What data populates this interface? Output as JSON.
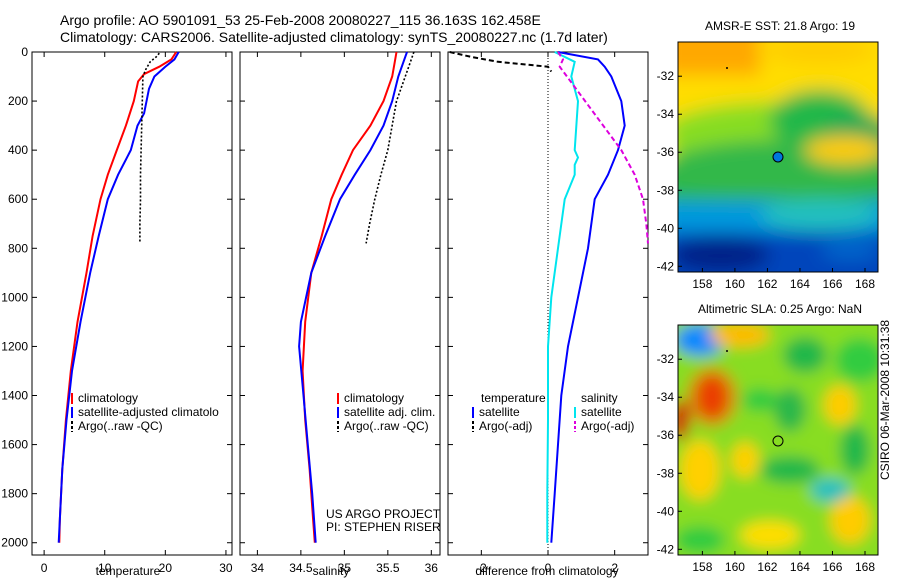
{
  "header": {
    "line1": "Argo profile: AO 5901091_53 25-Feb-2008 20080227_115 36.163S 162.458E",
    "line2": "Climatology: CARS2006. Satellite-adjusted climatology: synTS_20080227.nc (1.7d later)"
  },
  "credit": {
    "line1": "US ARGO PROJECT",
    "line2": "PI: STEPHEN RISER"
  },
  "footer_vertical": "CSIRO 06-Mar-2008 10:31:38",
  "colors": {
    "climatology": "#ff0000",
    "satellite": "#0000ff",
    "argo": "#000000",
    "cyan": "#00e5ee",
    "magenta": "#dd00dd"
  },
  "chart_data": [
    {
      "type": "line",
      "title": "",
      "xlabel": "temperature",
      "ylabel": "",
      "xlim": [
        -2,
        31
      ],
      "ylim": [
        2050,
        0
      ],
      "xticks": [
        0,
        10,
        20,
        30
      ],
      "yticks": [
        0,
        200,
        400,
        600,
        800,
        1000,
        1200,
        1400,
        1600,
        1800,
        2000
      ],
      "legend": [
        "climatology",
        "satellite-adjusted climatolo",
        "Argo(..raw -QC)"
      ],
      "series": [
        {
          "name": "climatology",
          "color": "red",
          "points": [
            [
              21.8,
              0
            ],
            [
              21,
              30
            ],
            [
              19,
              60
            ],
            [
              16.5,
              90
            ],
            [
              15.5,
              120
            ],
            [
              14.8,
              200
            ],
            [
              13.5,
              300
            ],
            [
              12,
              400
            ],
            [
              10.5,
              500
            ],
            [
              9.3,
              600
            ],
            [
              8,
              750
            ],
            [
              7,
              900
            ],
            [
              5.5,
              1100
            ],
            [
              4.4,
              1300
            ],
            [
              3.6,
              1500
            ],
            [
              3,
              1700
            ],
            [
              2.6,
              1900
            ],
            [
              2.5,
              2000
            ]
          ]
        },
        {
          "name": "satellite-adjusted climatolo",
          "color": "blue",
          "points": [
            [
              22.2,
              0
            ],
            [
              21.5,
              30
            ],
            [
              20,
              60
            ],
            [
              18.2,
              100
            ],
            [
              17.3,
              150
            ],
            [
              16.5,
              250
            ],
            [
              15.4,
              300
            ],
            [
              14.3,
              400
            ],
            [
              12.2,
              500
            ],
            [
              10.5,
              600
            ],
            [
              9,
              750
            ],
            [
              7.6,
              900
            ],
            [
              6,
              1100
            ],
            [
              4.6,
              1300
            ],
            [
              3.7,
              1500
            ],
            [
              3,
              1700
            ],
            [
              2.6,
              1900
            ],
            [
              2.4,
              2000
            ]
          ]
        },
        {
          "name": "Argo(..raw -QC)",
          "color": "black",
          "points": [
            [
              19,
              5
            ],
            [
              18.5,
              20
            ],
            [
              17.5,
              40
            ],
            [
              16.8,
              70
            ],
            [
              16.3,
              100
            ],
            [
              16.2,
              200
            ],
            [
              16.1,
              300
            ],
            [
              16.0,
              400
            ],
            [
              15.9,
              500
            ],
            [
              15.9,
              600
            ],
            [
              15.8,
              700
            ],
            [
              15.8,
              780
            ]
          ]
        }
      ]
    },
    {
      "type": "line",
      "title": "",
      "xlabel": "salinity",
      "ylabel": "",
      "xlim": [
        33.8,
        36.1
      ],
      "ylim": [
        2050,
        0
      ],
      "xticks": [
        34,
        34.5,
        35,
        35.5,
        36
      ],
      "legend": [
        "climatology",
        "satellite adj. clim.",
        "Argo(..raw -QC)"
      ],
      "series": [
        {
          "name": "climatology",
          "color": "red",
          "points": [
            [
              35.6,
              0
            ],
            [
              35.58,
              40
            ],
            [
              35.55,
              100
            ],
            [
              35.45,
              200
            ],
            [
              35.3,
              300
            ],
            [
              35.1,
              400
            ],
            [
              34.97,
              500
            ],
            [
              34.85,
              600
            ],
            [
              34.74,
              750
            ],
            [
              34.62,
              900
            ],
            [
              34.55,
              1100
            ],
            [
              34.52,
              1300
            ],
            [
              34.55,
              1500
            ],
            [
              34.6,
              1700
            ],
            [
              34.64,
              1900
            ],
            [
              34.66,
              2000
            ]
          ]
        },
        {
          "name": "satellite adj. clim.",
          "color": "blue",
          "points": [
            [
              35.72,
              0
            ],
            [
              35.68,
              40
            ],
            [
              35.62,
              100
            ],
            [
              35.55,
              200
            ],
            [
              35.45,
              300
            ],
            [
              35.3,
              400
            ],
            [
              35.12,
              500
            ],
            [
              34.95,
              600
            ],
            [
              34.78,
              750
            ],
            [
              34.62,
              900
            ],
            [
              34.5,
              1100
            ],
            [
              34.48,
              1200
            ],
            [
              34.53,
              1400
            ],
            [
              34.58,
              1600
            ],
            [
              34.63,
              1800
            ],
            [
              34.67,
              2000
            ]
          ]
        },
        {
          "name": "Argo(..raw -QC)",
          "color": "black",
          "points": [
            [
              35.8,
              0
            ],
            [
              35.77,
              30
            ],
            [
              35.72,
              80
            ],
            [
              35.6,
              200
            ],
            [
              35.5,
              400
            ],
            [
              35.42,
              500
            ],
            [
              35.35,
              600
            ],
            [
              35.29,
              700
            ],
            [
              35.25,
              780
            ]
          ]
        }
      ]
    },
    {
      "type": "line",
      "title": "",
      "xlabel": "difference from climatology",
      "ylabel": "",
      "xlim": [
        -3,
        3
      ],
      "ylim": [
        2050,
        0
      ],
      "xticks": [
        -2,
        0,
        2
      ],
      "legend_headers": [
        "temperature",
        "salinity"
      ],
      "legend": [
        "satellite",
        "Argo(-adj)",
        "satellite",
        "Argo(-adj)"
      ],
      "series": [
        {
          "name": "satellite",
          "group": "temperature",
          "color": "blue",
          "points": [
            [
              0.3,
              0
            ],
            [
              1.5,
              30
            ],
            [
              1.7,
              60
            ],
            [
              1.9,
              100
            ],
            [
              2.2,
              200
            ],
            [
              2.3,
              300
            ],
            [
              2.1,
              400
            ],
            [
              1.8,
              500
            ],
            [
              1.4,
              600
            ],
            [
              1.2,
              800
            ],
            [
              0.9,
              1000
            ],
            [
              0.6,
              1200
            ],
            [
              0.4,
              1400
            ],
            [
              0.3,
              1600
            ],
            [
              0.2,
              1800
            ],
            [
              0.1,
              2000
            ]
          ]
        },
        {
          "name": "Argo(-adj)",
          "group": "temperature",
          "color": "black",
          "points": [
            [
              -2.95,
              0
            ],
            [
              -2.3,
              20
            ],
            [
              -1.5,
              40
            ],
            [
              0,
              60
            ],
            [
              0.1,
              80
            ]
          ]
        },
        {
          "name": "satellite",
          "group": "salinity",
          "color": "cyan",
          "points": [
            [
              0.2,
              0
            ],
            [
              0.8,
              40
            ],
            [
              0.7,
              100
            ],
            [
              0.9,
              200
            ],
            [
              0.8,
              400
            ],
            [
              0.9,
              430
            ],
            [
              0.8,
              460
            ],
            [
              0.8,
              500
            ],
            [
              0.5,
              600
            ],
            [
              0.3,
              800
            ],
            [
              0.1,
              1000
            ],
            [
              0,
              1200
            ],
            [
              0,
              1500
            ],
            [
              -0.02,
              1800
            ],
            [
              -0.02,
              2000
            ]
          ]
        },
        {
          "name": "Argo(-adj)",
          "group": "salinity",
          "color": "magenta",
          "points": [
            [
              0.3,
              0
            ],
            [
              0.45,
              30
            ],
            [
              0.35,
              60
            ],
            [
              2.2,
              400
            ],
            [
              2.6,
              500
            ],
            [
              2.85,
              600
            ],
            [
              2.95,
              700
            ],
            [
              3.0,
              780
            ]
          ]
        }
      ]
    },
    {
      "type": "heatmap",
      "title": "AMSR-E SST: 21.8 Argo: 19",
      "xlim": [
        156.5,
        168.8
      ],
      "ylim": [
        -42.3,
        -30.2
      ],
      "xticks": [
        158,
        160,
        162,
        164,
        166,
        168
      ],
      "yticks": [
        -32,
        -34,
        -36,
        -38,
        -40,
        -42
      ],
      "marker": {
        "lon": 162.458,
        "lat": -36.163
      }
    },
    {
      "type": "heatmap",
      "title": "Altimetric SLA: 0.25 Argo: NaN",
      "xlim": [
        156.5,
        168.8
      ],
      "ylim": [
        -42.3,
        -30.2
      ],
      "xticks": [
        158,
        160,
        162,
        164,
        166,
        168
      ],
      "yticks": [
        -32,
        -34,
        -36,
        -38,
        -40,
        -42
      ],
      "marker": {
        "lon": 162.458,
        "lat": -36.163
      }
    }
  ]
}
